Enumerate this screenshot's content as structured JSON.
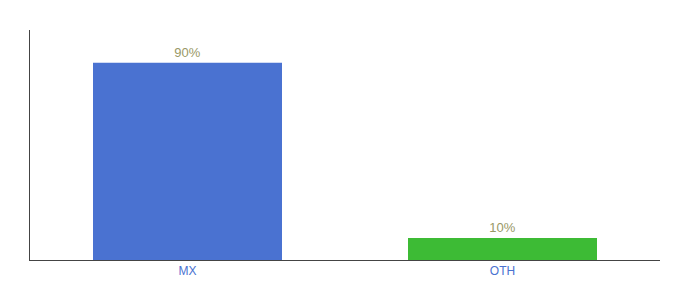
{
  "chart_data": {
    "type": "bar",
    "categories": [
      "MX",
      "OTH"
    ],
    "values": [
      90,
      10
    ],
    "value_labels": [
      "90%",
      "10%"
    ],
    "colors": [
      "#4a72d1",
      "#3dbb35"
    ],
    "ylim": [
      0,
      105
    ],
    "data_labels": true,
    "tick_labels": "x",
    "grid": false
  }
}
